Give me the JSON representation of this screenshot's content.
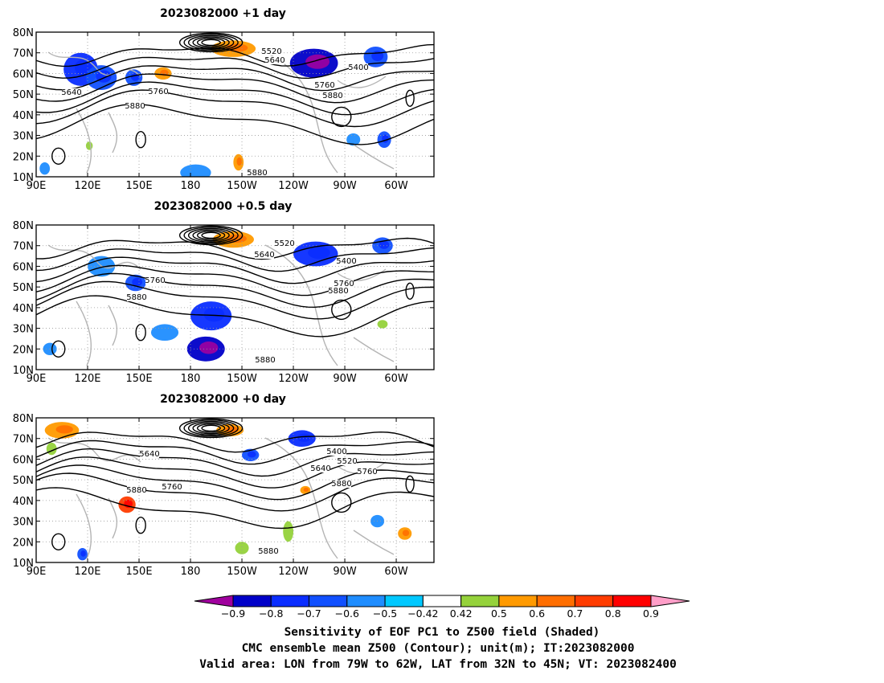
{
  "panels": [
    {
      "title": "2023082000  +1 day",
      "contour_labels": [
        "5520",
        "5640",
        "5400",
        "5760",
        "5880",
        "5640",
        "5760",
        "5880",
        "5880"
      ],
      "blobs": [
        {
          "lon": 116,
          "lat": 62,
          "rx": 10,
          "ry": 8,
          "level": -0.7
        },
        {
          "lon": 128,
          "lat": 58,
          "rx": 9,
          "ry": 6,
          "level": -0.6
        },
        {
          "lon": 147,
          "lat": 58,
          "rx": 5,
          "ry": 4,
          "level": -0.6
        },
        {
          "lon": 164,
          "lat": 60,
          "rx": 5,
          "ry": 3,
          "level": 0.6
        },
        {
          "lon": 205,
          "lat": 72,
          "rx": 13,
          "ry": 4,
          "level": 0.6
        },
        {
          "lon": 252,
          "lat": 65,
          "rx": 14,
          "ry": 7,
          "level": -0.8
        },
        {
          "lon": 288,
          "lat": 68,
          "rx": 7,
          "ry": 5,
          "level": -0.6
        },
        {
          "lon": 183,
          "lat": 12,
          "rx": 9,
          "ry": 4,
          "level": -0.5
        },
        {
          "lon": 208,
          "lat": 17,
          "rx": 3,
          "ry": 4,
          "level": 0.6
        },
        {
          "lon": 293,
          "lat": 28,
          "rx": 4,
          "ry": 4,
          "level": -0.6
        },
        {
          "lon": 275,
          "lat": 28,
          "rx": 4,
          "ry": 3,
          "level": -0.5
        },
        {
          "lon": 121,
          "lat": 25,
          "rx": 2,
          "ry": 2,
          "level": 0.5
        },
        {
          "lon": 95,
          "lat": 14,
          "rx": 3,
          "ry": 3,
          "level": -0.5
        }
      ]
    },
    {
      "title": "2023082000  +0.5 day",
      "contour_labels": [
        "5520",
        "5640",
        "5400",
        "5760",
        "5880",
        "5760",
        "5880",
        "5880"
      ],
      "blobs": [
        {
          "lon": 128,
          "lat": 60,
          "rx": 8,
          "ry": 5,
          "level": -0.5
        },
        {
          "lon": 148,
          "lat": 52,
          "rx": 6,
          "ry": 4,
          "level": -0.6
        },
        {
          "lon": 205,
          "lat": 73,
          "rx": 12,
          "ry": 4,
          "level": 0.6
        },
        {
          "lon": 253,
          "lat": 66,
          "rx": 13,
          "ry": 6,
          "level": -0.7
        },
        {
          "lon": 292,
          "lat": 70,
          "rx": 6,
          "ry": 4,
          "level": -0.6
        },
        {
          "lon": 192,
          "lat": 36,
          "rx": 12,
          "ry": 7,
          "level": -0.7
        },
        {
          "lon": 189,
          "lat": 20,
          "rx": 11,
          "ry": 6,
          "level": -0.8
        },
        {
          "lon": 165,
          "lat": 28,
          "rx": 8,
          "ry": 4,
          "level": -0.5
        },
        {
          "lon": 98,
          "lat": 20,
          "rx": 4,
          "ry": 3,
          "level": -0.5
        },
        {
          "lon": 292,
          "lat": 32,
          "rx": 3,
          "ry": 2,
          "level": 0.5
        }
      ]
    },
    {
      "title": "2023082000  +0 day",
      "contour_labels": [
        "5640",
        "5400",
        "5520",
        "5640",
        "5760",
        "5760",
        "5880",
        "5880",
        "5880"
      ],
      "blobs": [
        {
          "lon": 105,
          "lat": 74,
          "rx": 10,
          "ry": 4,
          "level": 0.6
        },
        {
          "lon": 143,
          "lat": 38,
          "rx": 5,
          "ry": 4,
          "level": 0.8
        },
        {
          "lon": 245,
          "lat": 70,
          "rx": 8,
          "ry": 4,
          "level": -0.7
        },
        {
          "lon": 203,
          "lat": 74,
          "rx": 8,
          "ry": 3,
          "level": 0.6
        },
        {
          "lon": 215,
          "lat": 62,
          "rx": 5,
          "ry": 3,
          "level": -0.6
        },
        {
          "lon": 237,
          "lat": 25,
          "rx": 3,
          "ry": 5,
          "level": 0.5
        },
        {
          "lon": 305,
          "lat": 24,
          "rx": 4,
          "ry": 3,
          "level": 0.6
        },
        {
          "lon": 289,
          "lat": 30,
          "rx": 4,
          "ry": 3,
          "level": -0.5
        },
        {
          "lon": 99,
          "lat": 65,
          "rx": 3,
          "ry": 3,
          "level": 0.5
        },
        {
          "lon": 210,
          "lat": 17,
          "rx": 4,
          "ry": 3,
          "level": 0.5
        },
        {
          "lon": 117,
          "lat": 14,
          "rx": 3,
          "ry": 3,
          "level": -0.6
        },
        {
          "lon": 247,
          "lat": 45,
          "rx": 3,
          "ry": 2,
          "level": 0.6
        }
      ]
    }
  ],
  "axes": {
    "x_ticks": [
      "90E",
      "120E",
      "150E",
      "180",
      "150W",
      "120W",
      "90W",
      "60W"
    ],
    "x_tick_lons": [
      90,
      120,
      150,
      180,
      210,
      240,
      270,
      300
    ],
    "y_ticks": [
      "80N",
      "70N",
      "60N",
      "50N",
      "40N",
      "30N",
      "20N",
      "10N"
    ],
    "y_tick_lats": [
      80,
      70,
      60,
      50,
      40,
      30,
      20,
      10
    ],
    "lon_range": [
      90,
      322
    ],
    "lat_range": [
      10,
      80
    ]
  },
  "colorbar": {
    "labels": [
      "−0.9",
      "−0.8",
      "−0.7",
      "−0.6",
      "−0.5",
      "−0.42",
      "0.42",
      "0.5",
      "0.6",
      "0.7",
      "0.8",
      "0.9"
    ],
    "colors": [
      "#a0009e",
      "#0000c8",
      "#0a2dff",
      "#1150ff",
      "#1f8dff",
      "#00c8ff",
      "#ffffff",
      "#95d23b",
      "#ff9a00",
      "#ff6e00",
      "#ff3c00",
      "#ff0000",
      "#ff9ec8"
    ]
  },
  "caption": {
    "line1": "Sensitivity of EOF PC1 to Z500 field (Shaded)",
    "line2": "CMC ensemble mean Z500 (Contour); unit(m); IT:2023082000",
    "line3": "Valid area: LON from 79W to 62W, LAT from 32N to 45N; VT: 2023082400"
  }
}
